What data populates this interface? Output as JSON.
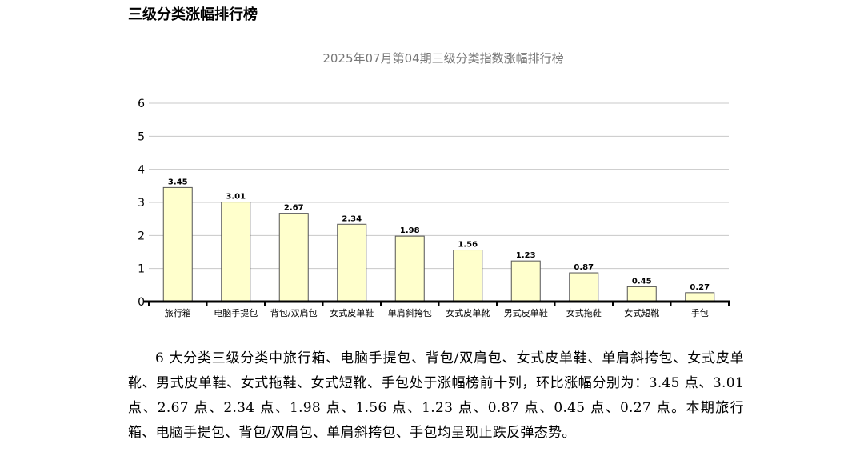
{
  "heading": "三级分类涨幅排行榜",
  "chart_data": {
    "type": "bar",
    "title": "2025年07月第04期三级分类指数涨幅排行榜",
    "xlabel": "",
    "ylabel": "",
    "categories": [
      "旅行箱",
      "电脑手提包",
      "背包/双肩包",
      "女式皮单鞋",
      "单肩斜挎包",
      "女式皮单靴",
      "男式皮单鞋",
      "女式拖鞋",
      "女式短靴",
      "手包"
    ],
    "values": [
      3.45,
      3.01,
      2.67,
      2.34,
      1.98,
      1.56,
      1.23,
      0.87,
      0.45,
      0.27
    ],
    "value_labels": [
      "3.45",
      "3.01",
      "2.67",
      "2.34",
      "1.98",
      "1.56",
      "1.23",
      "0.87",
      "0.45",
      "0.27"
    ],
    "ylim": [
      0,
      6
    ],
    "yticks": [
      "0",
      "1",
      "2",
      "3",
      "4",
      "5",
      "6"
    ],
    "grid": true,
    "legend": "none",
    "bar_color": "#ffffcc",
    "bar_border": "#555555",
    "grid_color": "#c8c8c8",
    "axis_color": "#000000"
  },
  "paragraph": "6 大分类三级分类中旅行箱、电脑手提包、背包/双肩包、女式皮单鞋、单肩斜挎包、女式皮单靴、男式皮单鞋、女式拖鞋、女式短靴、手包处于涨幅榜前十列，环比涨幅分别为：3.45 点、3.01 点、2.67 点、2.34 点、1.98 点、1.56 点、1.23 点、0.87 点、0.45 点、0.27 点。本期旅行箱、电脑手提包、背包/双肩包、单肩斜挎包、手包均呈现止跌反弹态势。"
}
